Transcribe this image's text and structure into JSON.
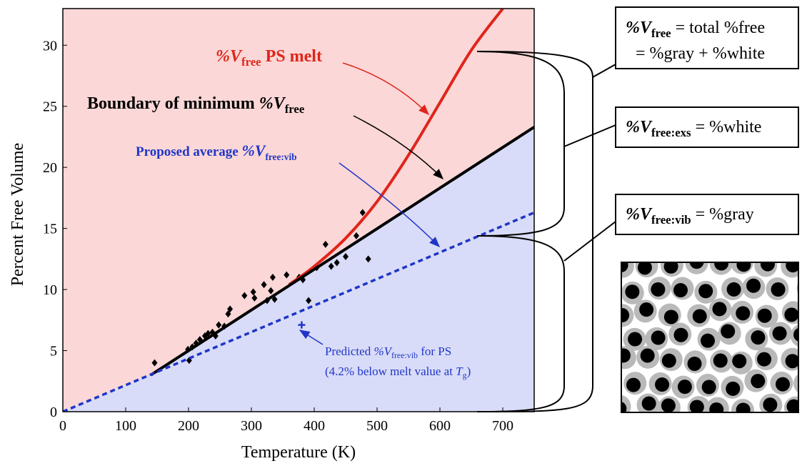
{
  "chart_data": {
    "type": "scatter",
    "xlabel": "Temperature  (K)",
    "ylabel": "Percent Free Volume",
    "xlim": [
      0,
      750
    ],
    "ylim": [
      0,
      33
    ],
    "xticks": [
      0,
      100,
      200,
      300,
      400,
      500,
      600,
      700
    ],
    "yticks": [
      0,
      5,
      10,
      15,
      20,
      25,
      30
    ],
    "background_color": "#fbd7d7",
    "below_color": "#d9dcf8",
    "series": [
      {
        "kind": "points",
        "marker": "diamond",
        "color": "#000000",
        "x": [
          146,
          199,
          201,
          206,
          212,
          218,
          226,
          231,
          238,
          243,
          248,
          257,
          263,
          266,
          289,
          303,
          305,
          320,
          325,
          331,
          334,
          337,
          356,
          376,
          382,
          391,
          404,
          418,
          427,
          436,
          450,
          467,
          477,
          486
        ],
        "values": [
          4.0,
          5.1,
          4.2,
          5.3,
          5.6,
          5.9,
          6.2,
          6.4,
          6.5,
          6.2,
          7.1,
          7.0,
          8.0,
          8.4,
          9.5,
          9.8,
          9.3,
          10.4,
          9.1,
          9.9,
          11.0,
          9.2,
          11.2,
          11.0,
          10.8,
          9.1,
          11.8,
          13.7,
          11.9,
          12.2,
          12.7,
          14.4,
          16.3,
          12.5
        ]
      },
      {
        "kind": "line",
        "style": "solid",
        "color": "#e0251b",
        "width": 4,
        "x": [
          360,
          400,
          450,
          500,
          550,
          600,
          650,
          700
        ],
        "values": [
          10.4,
          11.9,
          14.2,
          17.2,
          21.0,
          25.3,
          29.6,
          33.0
        ]
      },
      {
        "kind": "line",
        "style": "solid",
        "color": "#000000",
        "width": 4,
        "x": [
          140,
          750
        ],
        "values": [
          3.0,
          23.3
        ]
      },
      {
        "kind": "line",
        "style": "dashed",
        "color": "#1f36c8",
        "width": 3.5,
        "x": [
          0,
          750
        ],
        "values": [
          0,
          16.3
        ]
      },
      {
        "kind": "points",
        "marker": "plus",
        "color": "#1f36c8",
        "x": [
          380
        ],
        "values": [
          7.1
        ]
      }
    ],
    "annotations": {
      "melt": [
        "%V",
        "free",
        " PS melt"
      ],
      "boundary": [
        "Boundary of minimum ",
        "%V",
        "free"
      ],
      "proposed": [
        "Proposed average ",
        "%V",
        "free:vib"
      ],
      "predicted": [
        "Predicted ",
        "%V",
        "free:vib",
        " for PS"
      ],
      "predicted_note": [
        "(4.2% below melt value at ",
        "T",
        "g",
        ")"
      ]
    },
    "boxes": {
      "total": [
        "%V",
        "free",
        " = total %free",
        "= %gray + %white"
      ],
      "excess": [
        "%V",
        "free:exs",
        " = %white"
      ],
      "vibrational": [
        "%V",
        "free:vib",
        " = %gray"
      ]
    }
  }
}
